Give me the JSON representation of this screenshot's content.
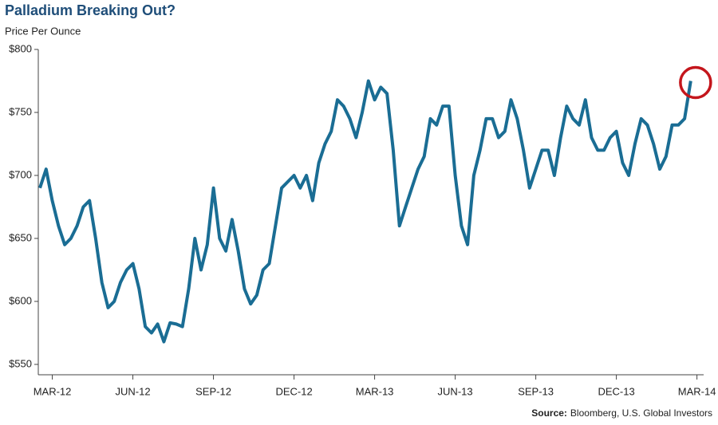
{
  "chart_data": {
    "type": "line",
    "title": "Palladium Breaking Out?",
    "subtitle": "Price Per Ounce",
    "source_label": "Source:",
    "source": "Bloomberg, U.S. Global Investors",
    "categories": [
      null,
      null,
      "MAR-12",
      null,
      null,
      null,
      null,
      null,
      null,
      null,
      null,
      null,
      null,
      null,
      null,
      "JUN-12",
      null,
      null,
      null,
      null,
      null,
      null,
      null,
      null,
      null,
      null,
      null,
      null,
      "SEP-12",
      null,
      null,
      null,
      null,
      null,
      null,
      null,
      null,
      null,
      null,
      null,
      null,
      "DEC-12",
      null,
      null,
      null,
      null,
      null,
      null,
      null,
      null,
      null,
      null,
      null,
      null,
      "MAR-13",
      null,
      null,
      null,
      null,
      null,
      null,
      null,
      null,
      null,
      null,
      null,
      null,
      "JUN-13",
      null,
      null,
      null,
      null,
      null,
      null,
      null,
      null,
      null,
      null,
      null,
      null,
      "SEP-13",
      null,
      null,
      null,
      null,
      null,
      null,
      null,
      null,
      null,
      null,
      null,
      null,
      "DEC-13",
      null,
      null,
      null,
      null,
      null,
      null,
      null,
      null,
      null,
      null,
      null,
      null,
      "MAR-14"
    ],
    "series": [
      {
        "name": "Palladium",
        "color": "#1a6d94",
        "values": [
          690,
          705,
          680,
          660,
          645,
          650,
          660,
          675,
          680,
          650,
          615,
          595,
          600,
          615,
          625,
          630,
          610,
          580,
          575,
          582,
          568,
          583,
          582,
          580,
          610,
          650,
          625,
          645,
          690,
          650,
          640,
          665,
          640,
          610,
          598,
          605,
          625,
          630,
          660,
          690,
          695,
          700,
          690,
          700,
          680,
          710,
          725,
          735,
          760,
          755,
          745,
          730,
          750,
          775,
          760,
          770,
          765,
          720,
          660,
          675,
          690,
          705,
          715,
          745,
          740,
          755,
          755,
          700,
          660,
          645,
          700,
          720,
          745,
          745,
          730,
          735,
          760,
          745,
          720,
          690,
          705,
          720,
          720,
          700,
          730,
          755,
          745,
          740,
          760,
          730,
          720,
          720,
          730,
          735,
          710,
          700,
          725,
          745,
          740,
          725,
          705,
          715,
          740,
          740,
          745,
          775,
          null
        ]
      }
    ],
    "ylim": [
      550,
      800
    ],
    "yticks": [
      {
        "value": 550,
        "label": "$550"
      },
      {
        "value": 600,
        "label": "$600"
      },
      {
        "value": 650,
        "label": "$650"
      },
      {
        "value": 700,
        "label": "$700"
      },
      {
        "value": 750,
        "label": "$750"
      },
      {
        "value": 800,
        "label": "$800"
      }
    ],
    "grid": false,
    "annotation_color": "#c4161c"
  }
}
